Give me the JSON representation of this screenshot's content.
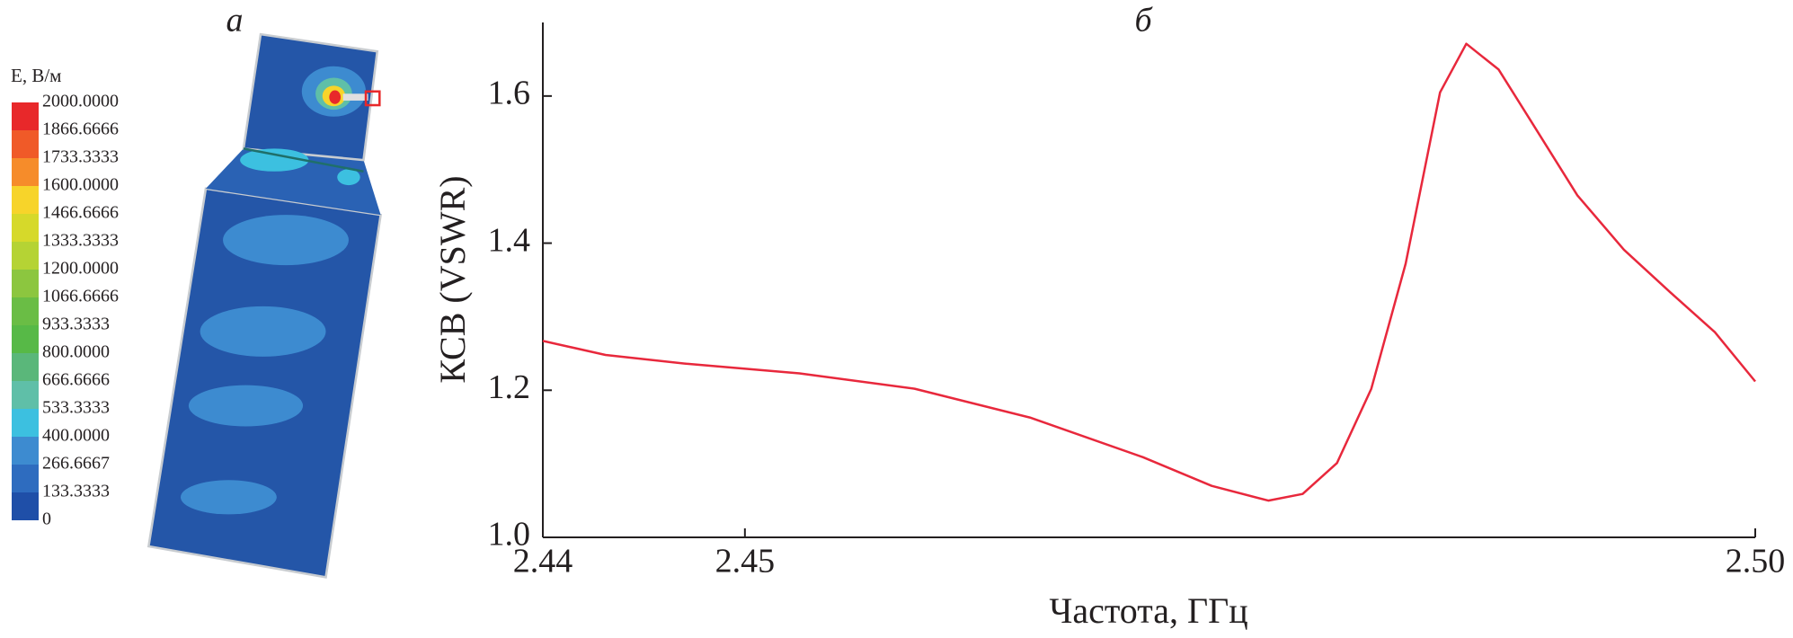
{
  "chart_data": [
    {
      "type": "contour",
      "title": "а",
      "colorbar": {
        "title": "E, В/м",
        "range": [
          0,
          2000
        ],
        "ticks": [
          {
            "value": 2000,
            "label": "2000.0000"
          },
          {
            "value": 1866.6666,
            "label": "1866.6666"
          },
          {
            "value": 1733.3333,
            "label": "1733.3333"
          },
          {
            "value": 1600,
            "label": "1600.0000"
          },
          {
            "value": 1466.6666,
            "label": "1466.6666"
          },
          {
            "value": 1333.3333,
            "label": "1333.3333"
          },
          {
            "value": 1200,
            "label": "1200.0000"
          },
          {
            "value": 1066.6666,
            "label": "1066.6666"
          },
          {
            "value": 933.3333,
            "label": "933.3333"
          },
          {
            "value": 800,
            "label": "800.0000"
          },
          {
            "value": 666.6666,
            "label": "666.6666"
          },
          {
            "value": 533.3333,
            "label": "533.3333"
          },
          {
            "value": 400,
            "label": "400.0000"
          },
          {
            "value": 266.6667,
            "label": "266.6667"
          },
          {
            "value": 133.3333,
            "label": "133.3333"
          },
          0
        ],
        "colors": [
          "#e8282a",
          "#f05a28",
          "#f68c2a",
          "#f7d42a",
          "#d6d92a",
          "#b5d334",
          "#8cc63f",
          "#6abd45",
          "#57b947",
          "#5ab77a",
          "#5fbfa8",
          "#3cc0e0",
          "#3d8bd0",
          "#2e6cbf",
          "#1f4fa8"
        ]
      }
    },
    {
      "type": "line",
      "title": "б",
      "xlabel": "Частота, ГГц",
      "ylabel": "КСВ (VSWR)",
      "color": "#e8283c",
      "x": [
        2.44,
        2.4431,
        2.4471,
        2.4527,
        2.4584,
        2.4641,
        2.4697,
        2.4731,
        2.4759,
        2.4776,
        2.4793,
        2.481,
        2.4827,
        2.4844,
        2.4857,
        2.4873,
        2.4889,
        2.4912,
        2.4935,
        2.4958,
        2.498,
        2.5
      ],
      "values": [
        1.267,
        1.248,
        1.236,
        1.223,
        1.202,
        1.163,
        1.109,
        1.07,
        1.05,
        1.059,
        1.101,
        1.202,
        1.372,
        1.605,
        1.671,
        1.636,
        1.566,
        1.465,
        1.391,
        1.333,
        1.279,
        1.212
      ],
      "xlim": [
        2.44,
        2.5
      ],
      "xticks": [
        2.44,
        2.45,
        {
          "value": 2.5,
          "label": "2.50"
        }
      ],
      "ylim": [
        1.0,
        1.7
      ],
      "yticks": [
        {
          "value": 1,
          "label": "1.0"
        },
        1.2,
        1.4,
        1.6
      ]
    }
  ]
}
